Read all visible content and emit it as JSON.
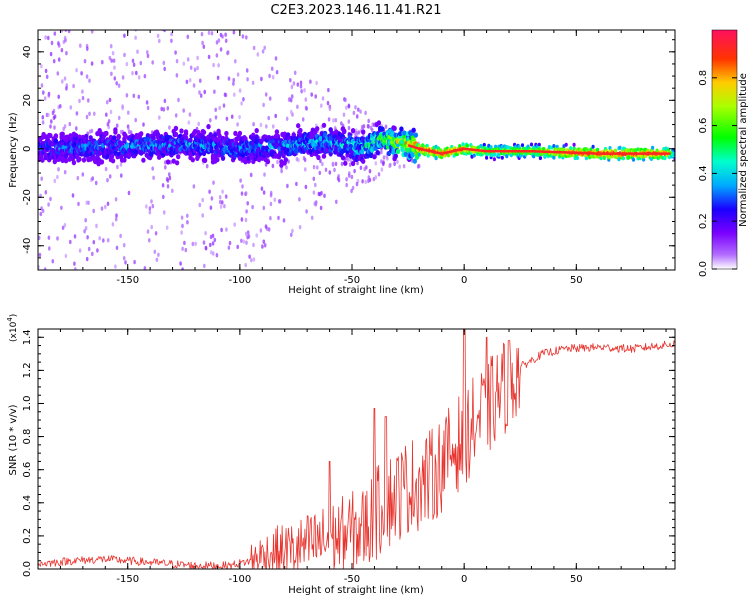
{
  "title": "C2E3.2023.146.11.41.R21",
  "colors": {
    "snr_line": "#e8342e",
    "background": "#ffffff"
  },
  "chart_data": [
    {
      "type": "heatmap",
      "name": "spectrogram",
      "xlabel": "Height of straight line (km)",
      "ylabel": "Frequency (Hz)",
      "xlim": [
        -190,
        94
      ],
      "ylim": [
        -50,
        49
      ],
      "x_ticks": [
        -150,
        -100,
        -50,
        0,
        50
      ],
      "y_ticks": [
        -40,
        -20,
        0,
        20,
        40
      ],
      "colormap": "rainbow",
      "colorbar": {
        "label": "Normalized spectral amplitude",
        "range": [
          0,
          1
        ],
        "ticks": [
          0.0,
          0.2,
          0.4,
          0.6,
          0.8
        ]
      },
      "ridge": {
        "center_frequency_hz": [
          [
            -190,
            0
          ],
          [
            -150,
            1
          ],
          [
            -120,
            2
          ],
          [
            -100,
            0
          ],
          [
            -80,
            1
          ],
          [
            -60,
            3
          ],
          [
            -45,
            0
          ],
          [
            -38,
            4
          ],
          [
            -30,
            3
          ],
          [
            -20,
            0
          ],
          [
            -10,
            -2
          ],
          [
            0,
            0
          ],
          [
            10,
            -1
          ],
          [
            30,
            -1
          ],
          [
            60,
            -2
          ],
          [
            94,
            -2
          ]
        ],
        "peak_amplitude": [
          [
            -190,
            0.3
          ],
          [
            -150,
            0.35
          ],
          [
            -100,
            0.35
          ],
          [
            -60,
            0.4
          ],
          [
            -40,
            0.5
          ],
          [
            -20,
            0.95
          ],
          [
            0,
            0.9
          ],
          [
            10,
            0.7
          ],
          [
            30,
            0.7
          ],
          [
            45,
            0.9
          ],
          [
            70,
            0.95
          ],
          [
            90,
            0.9
          ],
          [
            94,
            0.4
          ]
        ]
      }
    },
    {
      "type": "line",
      "name": "snr",
      "xlabel": "Height of straight line (km)",
      "ylabel": "SNR (10 * v/v)",
      "y_multiplier": "(x10^4)",
      "xlim": [
        -190,
        94
      ],
      "ylim": [
        0,
        1.45
      ],
      "x_ticks": [
        -150,
        -100,
        -50,
        0,
        50
      ],
      "y_ticks": [
        0.0,
        0.2,
        0.4,
        0.6,
        0.8,
        1.0,
        1.2,
        1.4
      ],
      "envelope": {
        "x": [
          -190,
          -175,
          -160,
          -140,
          -120,
          -105,
          -95,
          -85,
          -75,
          -65,
          -55,
          -45,
          -35,
          -25,
          -15,
          -5,
          5,
          15,
          25,
          35,
          45,
          60,
          75,
          94
        ],
        "mean": [
          0.03,
          0.05,
          0.06,
          0.04,
          0.02,
          0.02,
          0.05,
          0.1,
          0.12,
          0.16,
          0.2,
          0.24,
          0.4,
          0.5,
          0.55,
          0.72,
          0.88,
          1.05,
          1.22,
          1.3,
          1.33,
          1.34,
          1.33,
          1.36
        ],
        "peaks": [
          [
            -60,
            0.65
          ],
          [
            -40,
            0.97
          ],
          [
            -35,
            0.92
          ],
          [
            0,
            1.45
          ],
          [
            10,
            1.4
          ],
          [
            20,
            1.38
          ]
        ]
      }
    }
  ]
}
